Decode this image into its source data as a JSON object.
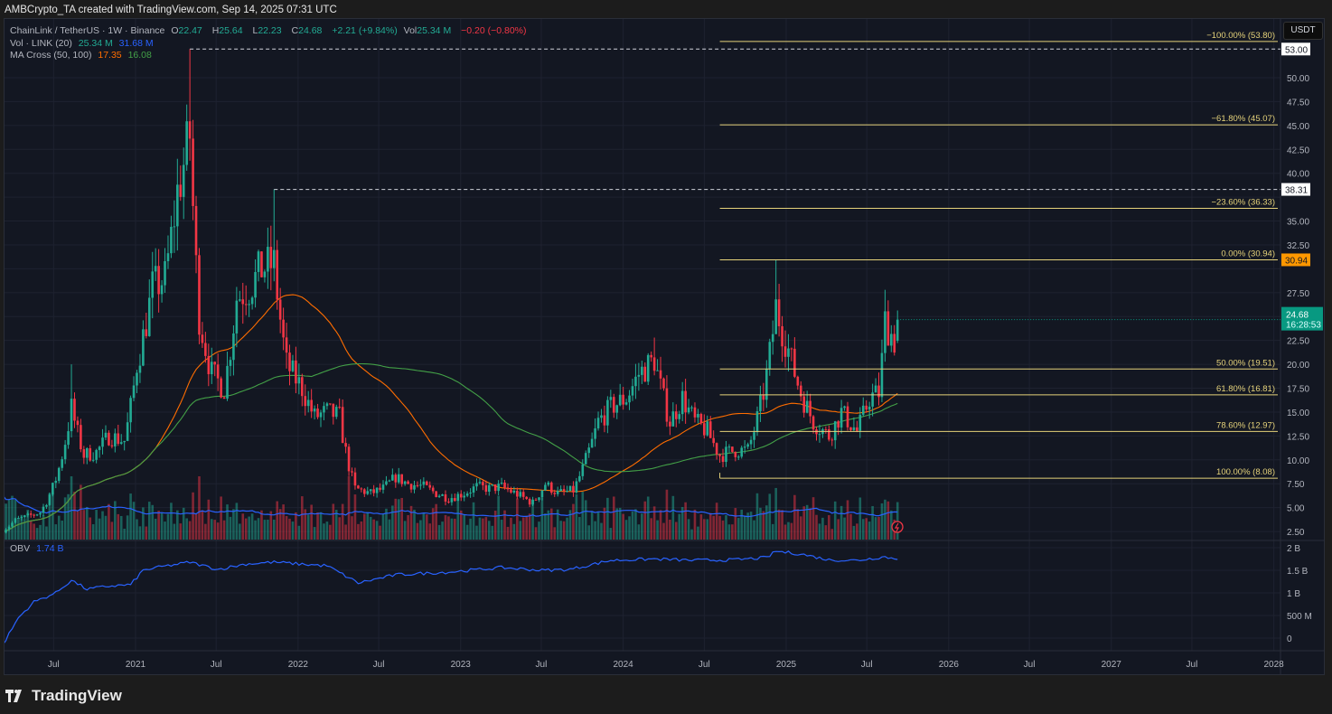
{
  "caption": "AMBCrypto_TA created with TradingView.com, Sep 14, 2025 07:31 UTC",
  "legend": {
    "symbol": "ChainLink / TetherUS · 1W · Binance",
    "o_label": "O",
    "o": "22.47",
    "h_label": "H",
    "h": "25.64",
    "l_label": "L",
    "l": "22.23",
    "c_label": "C",
    "c": "24.68",
    "change": "+2.21 (+9.84%)",
    "vol_label": "Vol",
    "vol": "25.34 M",
    "vol_change": "−0.20 (−0.80%)",
    "vol_ind": "Vol · LINK (20)",
    "vol_ind_v1": "25.34 M",
    "vol_ind_v2": "31.68 M",
    "ma_ind": "MA Cross (50, 100)",
    "ma_v1": "17.35",
    "ma_v2": "16.08",
    "obv_ind": "OBV",
    "obv_v": "1.74 B"
  },
  "currency_button": "USDT",
  "brand": "TradingView",
  "colors": {
    "up": "#22ab94",
    "down": "#f23645",
    "ma50": "#ff6d00",
    "ma100": "#43a047",
    "vol_ma": "#2962ff",
    "obv": "#2962ff",
    "fib": "#e5d27a",
    "last_price": "#089981",
    "fib_top_tag": "#ff9800"
  },
  "chart_data": {
    "type": "candlestick",
    "interval": "1W",
    "price_axis": {
      "range": [
        0.5,
        56
      ],
      "ticks": [
        "53.00",
        "50.00",
        "47.50",
        "45.00",
        "42.50",
        "40.00",
        "38.31",
        "35.00",
        "32.50",
        "30.94",
        "27.50",
        "22.50",
        "20.00",
        "17.50",
        "15.00",
        "12.50",
        "10.00",
        "7.50",
        "5.00",
        "2.50"
      ],
      "tick_values": [
        50,
        47.5,
        45,
        42.5,
        40,
        37.5,
        35,
        32.5,
        30,
        27.5,
        25,
        22.5,
        20,
        17.5,
        15,
        12.5,
        10,
        7.5,
        5,
        2.5
      ]
    },
    "obv_axis": {
      "ticks": [
        "2 B",
        "1.5 B",
        "1 B",
        "500 M",
        "0"
      ],
      "tick_values": [
        2,
        1.5,
        1,
        0.5,
        0
      ]
    },
    "time_axis": [
      {
        "label": "Jul",
        "date": "2020-07-01"
      },
      {
        "label": "2021",
        "date": "2021-01-01"
      },
      {
        "label": "Jul",
        "date": "2021-07-01"
      },
      {
        "label": "2022",
        "date": "2022-01-01"
      },
      {
        "label": "Jul",
        "date": "2022-07-01"
      },
      {
        "label": "2023",
        "date": "2023-01-01"
      },
      {
        "label": "Jul",
        "date": "2023-07-01"
      },
      {
        "label": "2024",
        "date": "2024-01-01"
      },
      {
        "label": "Jul",
        "date": "2024-07-01"
      },
      {
        "label": "2025",
        "date": "2025-01-01"
      },
      {
        "label": "Jul",
        "date": "2025-07-01"
      },
      {
        "label": "2026",
        "date": "2026-01-01"
      },
      {
        "label": "Jul",
        "date": "2026-07-01"
      },
      {
        "label": "2027",
        "date": "2027-01-01"
      },
      {
        "label": "Jul",
        "date": "2027-07-01"
      },
      {
        "label": "2028",
        "date": "2028-01-01"
      }
    ],
    "close_anchors": [
      [
        "2020-03-09",
        2.6
      ],
      [
        "2020-04-06",
        3.7
      ],
      [
        "2020-05-04",
        4.1
      ],
      [
        "2020-06-01",
        4.5
      ],
      [
        "2020-07-06",
        8.0
      ],
      [
        "2020-08-10",
        15.5
      ],
      [
        "2020-09-07",
        10.5
      ],
      [
        "2020-10-05",
        10.8
      ],
      [
        "2020-11-02",
        12.5
      ],
      [
        "2020-12-07",
        12.0
      ],
      [
        "2021-01-04",
        20.0
      ],
      [
        "2021-02-08",
        28.0
      ],
      [
        "2021-03-08",
        29.0
      ],
      [
        "2021-04-05",
        38.0
      ],
      [
        "2021-05-03",
        44.0
      ],
      [
        "2021-05-24",
        25.0
      ],
      [
        "2021-06-21",
        19.0
      ],
      [
        "2021-07-19",
        17.5
      ],
      [
        "2021-08-16",
        27.0
      ],
      [
        "2021-09-13",
        28.0
      ],
      [
        "2021-10-11",
        30.0
      ],
      [
        "2021-11-08",
        30.5
      ],
      [
        "2021-12-06",
        20.0
      ],
      [
        "2022-01-10",
        17.5
      ],
      [
        "2022-02-07",
        14.5
      ],
      [
        "2022-03-07",
        15.0
      ],
      [
        "2022-04-04",
        14.5
      ],
      [
        "2022-05-09",
        7.0
      ],
      [
        "2022-06-13",
        6.5
      ],
      [
        "2022-07-11",
        7.0
      ],
      [
        "2022-08-08",
        8.2
      ],
      [
        "2022-09-05",
        7.5
      ],
      [
        "2022-10-10",
        7.2
      ],
      [
        "2022-11-07",
        6.5
      ],
      [
        "2022-12-05",
        6.0
      ],
      [
        "2023-01-09",
        6.5
      ],
      [
        "2023-02-06",
        7.2
      ],
      [
        "2023-03-06",
        7.0
      ],
      [
        "2023-04-03",
        7.2
      ],
      [
        "2023-05-08",
        6.4
      ],
      [
        "2023-06-12",
        5.5
      ],
      [
        "2023-07-10",
        7.5
      ],
      [
        "2023-08-07",
        6.5
      ],
      [
        "2023-09-11",
        6.8
      ],
      [
        "2023-10-09",
        10.0
      ],
      [
        "2023-11-06",
        14.0
      ],
      [
        "2023-12-04",
        15.5
      ],
      [
        "2024-01-08",
        16.5
      ],
      [
        "2024-02-05",
        19.0
      ],
      [
        "2024-03-11",
        20.5
      ],
      [
        "2024-04-15",
        14.0
      ],
      [
        "2024-05-13",
        16.5
      ],
      [
        "2024-06-10",
        14.0
      ],
      [
        "2024-07-08",
        13.0
      ],
      [
        "2024-08-05",
        10.5
      ],
      [
        "2024-09-09",
        11.0
      ],
      [
        "2024-10-07",
        11.0
      ],
      [
        "2024-11-11",
        17.0
      ],
      [
        "2024-12-09",
        26.0
      ],
      [
        "2025-01-06",
        21.5
      ],
      [
        "2025-02-03",
        17.0
      ],
      [
        "2025-03-03",
        14.0
      ],
      [
        "2025-04-07",
        12.5
      ],
      [
        "2025-05-05",
        15.0
      ],
      [
        "2025-06-09",
        13.0
      ],
      [
        "2025-07-07",
        16.5
      ],
      [
        "2025-07-28",
        17.0
      ],
      [
        "2025-08-11",
        24.5
      ],
      [
        "2025-09-01",
        22.47
      ],
      [
        "2025-09-08",
        24.68
      ]
    ],
    "wick_highs": [
      [
        "2020-08-10",
        20.0
      ],
      [
        "2021-05-03",
        53.0
      ],
      [
        "2021-11-08",
        38.31
      ],
      [
        "2024-03-11",
        22.8
      ],
      [
        "2024-12-09",
        30.94
      ],
      [
        "2025-08-11",
        27.8
      ]
    ],
    "last_candle": {
      "open": 22.47,
      "high": 25.64,
      "low": 22.23,
      "close": 24.68,
      "volume_m": 25.34
    },
    "obv_anchors_billions": [
      [
        "2020-03-09",
        -0.15
      ],
      [
        "2020-04-13",
        0.45
      ],
      [
        "2020-05-18",
        0.8
      ],
      [
        "2020-07-06",
        1.0
      ],
      [
        "2020-08-10",
        1.28
      ],
      [
        "2020-09-14",
        1.08
      ],
      [
        "2020-11-02",
        1.15
      ],
      [
        "2020-12-21",
        1.18
      ],
      [
        "2021-01-18",
        1.5
      ],
      [
        "2021-03-01",
        1.58
      ],
      [
        "2021-05-03",
        1.68
      ],
      [
        "2021-07-05",
        1.52
      ],
      [
        "2021-09-06",
        1.64
      ],
      [
        "2021-11-08",
        1.68
      ],
      [
        "2022-01-03",
        1.64
      ],
      [
        "2022-03-07",
        1.6
      ],
      [
        "2022-05-16",
        1.22
      ],
      [
        "2022-08-08",
        1.4
      ],
      [
        "2022-12-05",
        1.46
      ],
      [
        "2023-04-03",
        1.56
      ],
      [
        "2023-07-03",
        1.5
      ],
      [
        "2023-09-04",
        1.52
      ],
      [
        "2023-12-04",
        1.72
      ],
      [
        "2024-03-11",
        1.75
      ],
      [
        "2024-06-03",
        1.72
      ],
      [
        "2024-09-02",
        1.73
      ],
      [
        "2024-11-18",
        1.78
      ],
      [
        "2024-12-09",
        1.92
      ],
      [
        "2025-02-03",
        1.86
      ],
      [
        "2025-04-07",
        1.73
      ],
      [
        "2025-06-09",
        1.72
      ],
      [
        "2025-08-11",
        1.8
      ],
      [
        "2025-09-08",
        1.74
      ]
    ],
    "horizontal_lines": [
      {
        "price": 53.0,
        "label": "53.00",
        "from": "2021-05-03"
      },
      {
        "price": 38.31,
        "label": "38.31",
        "from": "2021-11-08"
      }
    ],
    "fib_retracement": {
      "from": "2024-08-05",
      "levels": [
        {
          "ratio": "-100.00%",
          "price": 53.8,
          "label": "−100.00% (53.80)"
        },
        {
          "ratio": "-61.80%",
          "price": 45.07,
          "label": "−61.80% (45.07)"
        },
        {
          "ratio": "-23.60%",
          "price": 36.33,
          "label": "−23.60% (36.33)"
        },
        {
          "ratio": "0.00%",
          "price": 30.94,
          "label": "0.00% (30.94)"
        },
        {
          "ratio": "50.00%",
          "price": 19.51,
          "label": "50.00% (19.51)"
        },
        {
          "ratio": "61.80%",
          "price": 16.81,
          "label": "61.80% (16.81)"
        },
        {
          "ratio": "78.60%",
          "price": 12.97,
          "label": "78.60% (12.97)"
        },
        {
          "ratio": "100.00%",
          "price": 8.08,
          "label": "100.00% (8.08)"
        }
      ]
    },
    "last_price_tag": {
      "price": "24.68",
      "countdown": "16:28:53"
    },
    "fib_top_tag": "30.94",
    "indicators": [
      "Volume (20)",
      "MA Cross (50, 100)",
      "OBV"
    ]
  }
}
